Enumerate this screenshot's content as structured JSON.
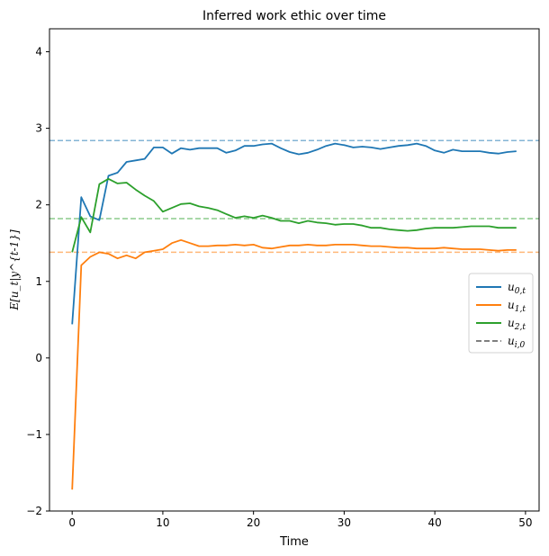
{
  "chart_data": {
    "type": "line",
    "title": "Inferred work ethic over time",
    "xlabel": "Time",
    "ylabel": "E[u_t|y^{t-1}]",
    "xlim": [
      -2.5,
      51.5
    ],
    "ylim": [
      -2,
      4.3
    ],
    "xticks": [
      0,
      10,
      20,
      30,
      40,
      50
    ],
    "yticks": [
      -2,
      -1,
      0,
      1,
      2,
      3,
      4
    ],
    "ytick_labels": [
      "−2",
      "−1",
      "0",
      "1",
      "2",
      "3",
      "4"
    ],
    "grid": false,
    "legend_position": "center-right",
    "x": [
      0,
      1,
      2,
      3,
      4,
      5,
      6,
      7,
      8,
      9,
      10,
      11,
      12,
      13,
      14,
      15,
      16,
      17,
      18,
      19,
      20,
      21,
      22,
      23,
      24,
      25,
      26,
      27,
      28,
      29,
      30,
      31,
      32,
      33,
      34,
      35,
      36,
      37,
      38,
      39,
      40,
      41,
      42,
      43,
      44,
      45,
      46,
      47,
      48,
      49
    ],
    "series": [
      {
        "name": "u_{0,t}",
        "color": "#1f77b4",
        "values": [
          0.44,
          2.1,
          1.85,
          1.8,
          2.38,
          2.42,
          2.56,
          2.58,
          2.6,
          2.75,
          2.75,
          2.67,
          2.74,
          2.72,
          2.74,
          2.74,
          2.74,
          2.68,
          2.71,
          2.77,
          2.77,
          2.79,
          2.8,
          2.74,
          2.69,
          2.66,
          2.68,
          2.72,
          2.77,
          2.8,
          2.78,
          2.75,
          2.76,
          2.75,
          2.73,
          2.75,
          2.77,
          2.78,
          2.8,
          2.77,
          2.71,
          2.68,
          2.72,
          2.7,
          2.7,
          2.7,
          2.68,
          2.67,
          2.69,
          2.7
        ]
      },
      {
        "name": "u_{1,t}",
        "color": "#ff7f0e",
        "values": [
          -1.72,
          1.21,
          1.32,
          1.38,
          1.36,
          1.3,
          1.34,
          1.3,
          1.38,
          1.4,
          1.42,
          1.5,
          1.54,
          1.5,
          1.46,
          1.46,
          1.47,
          1.47,
          1.48,
          1.47,
          1.48,
          1.44,
          1.43,
          1.45,
          1.47,
          1.47,
          1.48,
          1.47,
          1.47,
          1.48,
          1.48,
          1.48,
          1.47,
          1.46,
          1.46,
          1.45,
          1.44,
          1.44,
          1.43,
          1.43,
          1.43,
          1.44,
          1.43,
          1.42,
          1.42,
          1.42,
          1.41,
          1.4,
          1.41,
          1.41
        ]
      },
      {
        "name": "u_{2,t}",
        "color": "#2ca02c",
        "values": [
          1.38,
          1.84,
          1.64,
          2.27,
          2.34,
          2.28,
          2.29,
          2.2,
          2.12,
          2.05,
          1.91,
          1.96,
          2.01,
          2.02,
          1.98,
          1.96,
          1.93,
          1.88,
          1.83,
          1.85,
          1.83,
          1.86,
          1.83,
          1.79,
          1.79,
          1.76,
          1.79,
          1.77,
          1.76,
          1.74,
          1.75,
          1.75,
          1.73,
          1.7,
          1.7,
          1.68,
          1.67,
          1.66,
          1.67,
          1.69,
          1.7,
          1.7,
          1.7,
          1.71,
          1.72,
          1.72,
          1.72,
          1.7,
          1.7,
          1.7
        ]
      }
    ],
    "reference_lines": [
      {
        "series": "u_{0,t}",
        "value": 2.84,
        "color": "#1f77b4"
      },
      {
        "series": "u_{1,t}",
        "value": 1.38,
        "color": "#ff7f0e"
      },
      {
        "series": "u_{2,t}",
        "value": 1.82,
        "color": "#2ca02c"
      }
    ],
    "legend": [
      {
        "label_main": "u",
        "label_sub": "0,t",
        "style": "solid",
        "color": "#1f77b4"
      },
      {
        "label_main": "u",
        "label_sub": "1,t",
        "style": "solid",
        "color": "#ff7f0e"
      },
      {
        "label_main": "u",
        "label_sub": "2,t",
        "style": "solid",
        "color": "#2ca02c"
      },
      {
        "label_main": "u",
        "label_sub": "i,0",
        "style": "dashed",
        "color": "#7f7f7f"
      }
    ]
  }
}
